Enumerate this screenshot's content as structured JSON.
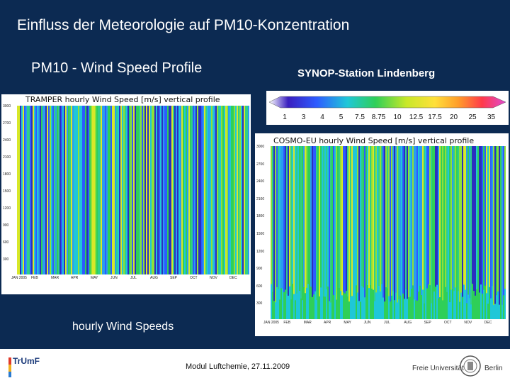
{
  "slide": {
    "title": "Einfluss der Meteorologie auf  PM10-Konzentration",
    "subtitle": "PM10 - Wind Speed Profile",
    "station": "SYNOP-Station Lindenberg",
    "caption": "hourly Wind Speeds"
  },
  "legend": {
    "values": [
      "1",
      "3",
      "4",
      "5",
      "7.5",
      "8.75",
      "10",
      "12.5",
      "17.5",
      "20",
      "25",
      "35"
    ]
  },
  "panel_left": {
    "title": "TRAMPER  hourly  Wind  Speed  [m/s]  vertical  profile",
    "y_ticks": [
      "3000",
      "2700",
      "2400",
      "2100",
      "1800",
      "1500",
      "1200",
      "900",
      "600",
      "300"
    ],
    "x_ticks": [
      "JAN 2005",
      "FEB",
      "MAR",
      "APR",
      "MAY",
      "JUN",
      "JUL",
      "AUG",
      "SEP",
      "OCT",
      "NOV",
      "DEC"
    ]
  },
  "panel_right": {
    "title": "COSMO-EU  hourly  Wind  Speed  [m/s]  vertical  profile",
    "y_ticks": [
      "3000",
      "2700",
      "2400",
      "2100",
      "1800",
      "1500",
      "1200",
      "900",
      "600",
      "300"
    ],
    "x_ticks": [
      "JAN 2005",
      "FEB",
      "MAR",
      "APR",
      "MAY",
      "JUN",
      "JUL",
      "AUG",
      "SEP",
      "OCT",
      "NOV",
      "DEC"
    ]
  },
  "footer": {
    "center": "Modul Luftchemie, 27.11.2009",
    "left_logo": "TrUmF",
    "right_logo_1": "Freie Universität",
    "right_logo_2": "Berlin"
  },
  "colors": {
    "background": "#0c2a52",
    "panel_bg": "#ffffff"
  }
}
